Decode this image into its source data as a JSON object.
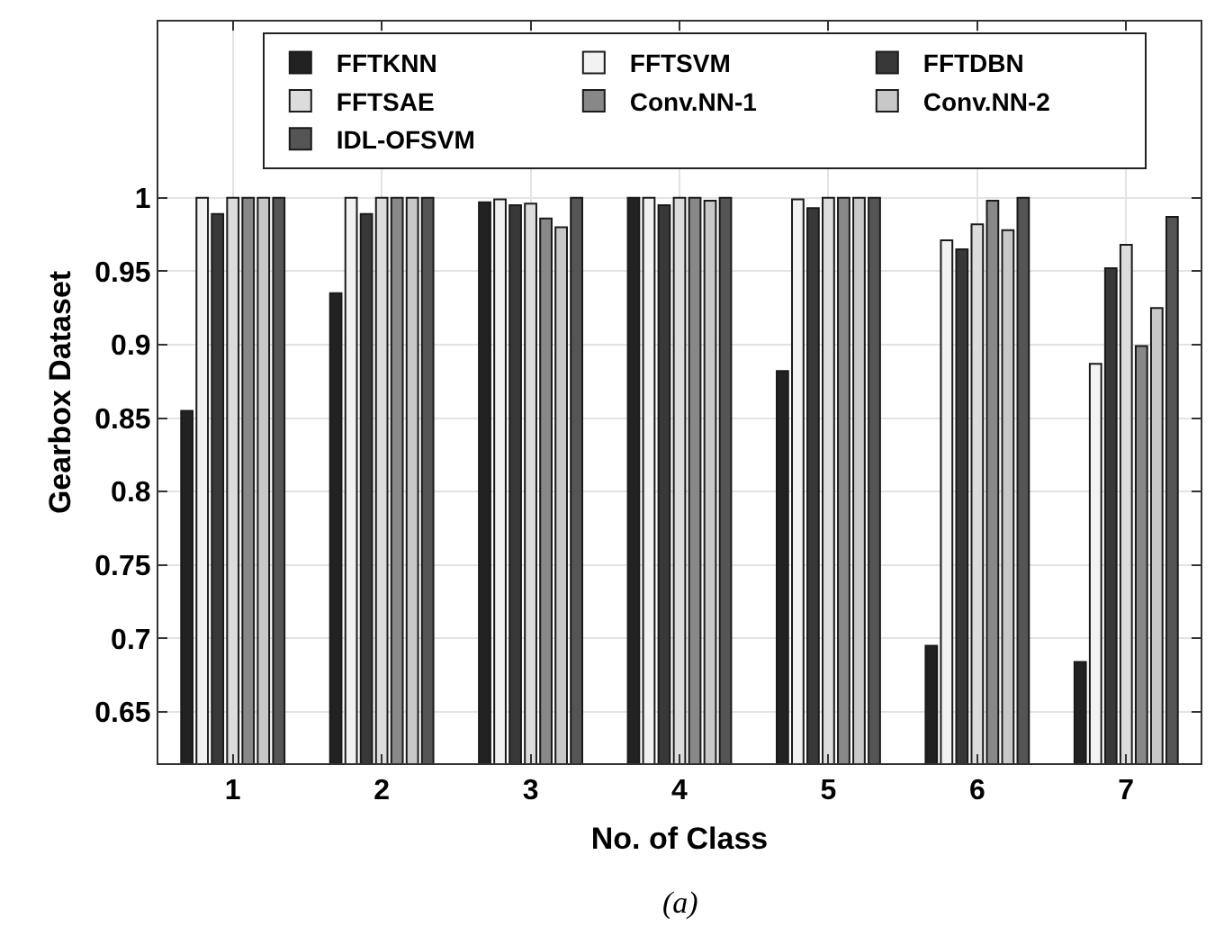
{
  "chart_data": {
    "type": "bar",
    "xlabel": "No. of Class",
    "ylabel": "Gearbox Dataset",
    "categories": [
      "1",
      "2",
      "3",
      "4",
      "5",
      "6",
      "7"
    ],
    "series": [
      {
        "name": "FFTKNN",
        "color": "#222222",
        "values": [
          0.855,
          0.935,
          0.997,
          1,
          0.882,
          0.695,
          0.684
        ]
      },
      {
        "name": "FFTSVM",
        "color": "#f2f2f2",
        "values": [
          1,
          1,
          0.999,
          1,
          0.999,
          0.971,
          0.887
        ]
      },
      {
        "name": "FFTDBN",
        "color": "#383838",
        "values": [
          0.989,
          0.989,
          0.995,
          0.995,
          0.993,
          0.965,
          0.952
        ]
      },
      {
        "name": "FFTSAE",
        "color": "#dcdcdc",
        "values": [
          1,
          1,
          0.996,
          1,
          1,
          0.982,
          0.968
        ]
      },
      {
        "name": "Conv.NN-1",
        "color": "#888888",
        "values": [
          1,
          1,
          0.986,
          1,
          1,
          0.998,
          0.899
        ]
      },
      {
        "name": "Conv.NN-2",
        "color": "#c8c8c8",
        "values": [
          1,
          1,
          0.98,
          0.998,
          1,
          0.978,
          0.925
        ]
      },
      {
        "name": "IDL-OFSVM",
        "color": "#555555",
        "values": [
          1,
          1,
          1,
          1,
          1,
          1,
          0.987
        ]
      }
    ],
    "ylim": [
      0.615,
      1.12
    ],
    "yticks": [
      0.65,
      0.7,
      0.75,
      0.8,
      0.85,
      0.9,
      0.95,
      1
    ],
    "grid": true,
    "legend": "top right",
    "annotations": [
      "(a)"
    ]
  }
}
